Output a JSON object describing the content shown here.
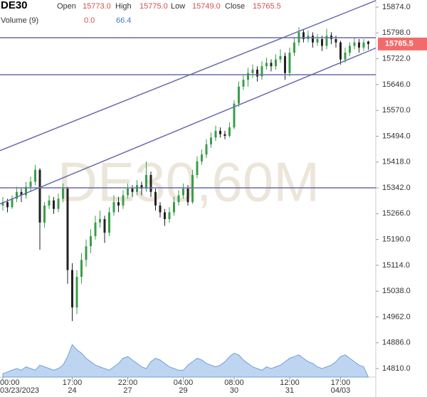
{
  "chart_data": {
    "type": "candlestick",
    "symbol": "DE30",
    "watermark": "DE30,60M",
    "legend": [
      {
        "name": "Open",
        "value": {
          "value": 15773,
          "label": "15773.0"
        }
      },
      {
        "name": "High",
        "value": {
          "value": 15775,
          "label": "15775.0"
        }
      },
      {
        "name": "Low",
        "value": {
          "value": 15749,
          "label": "15749.0"
        }
      },
      {
        "name": "Close",
        "value": {
          "value": 15765.5,
          "label": "15765.5"
        }
      }
    ],
    "volume_legend": {
      "name": "Volume (9)",
      "values": [
        {
          "value": 0,
          "label": "0.0"
        },
        {
          "value": 66.4,
          "label": "66.4"
        }
      ]
    },
    "up_color": "#3a9e48",
    "down_color": "#222222",
    "line_color": "#6a6aae",
    "price_label_color": "#f26b6b",
    "volume_color": "#aecbef",
    "ylim": [
      14785,
      15895
    ],
    "yticks": [
      {
        "value": 15874,
        "label": "15874.0"
      },
      {
        "value": 15798,
        "label": "15798.0"
      },
      {
        "value": 15722,
        "label": "15722.0"
      },
      {
        "value": 15646,
        "label": "15646.0"
      },
      {
        "value": 15570,
        "label": "15570.0"
      },
      {
        "value": 15494,
        "label": "15494.0"
      },
      {
        "value": 15418,
        "label": "15418.0"
      },
      {
        "value": 15342,
        "label": "15342.0"
      },
      {
        "value": 15266,
        "label": "15266.0"
      },
      {
        "value": 15190,
        "label": "15190.0"
      },
      {
        "value": 15114,
        "label": "15114.0"
      },
      {
        "value": 15038,
        "label": "15038.0"
      },
      {
        "value": 14962,
        "label": "14962.0"
      },
      {
        "value": 14886,
        "label": "14886.0"
      },
      {
        "value": 14810,
        "label": "14810.0"
      }
    ],
    "xticks": [
      {
        "value": 0,
        "label": "00:00",
        "date": "03/23/2023"
      },
      {
        "value": 15,
        "label": "17:00",
        "date": "24"
      },
      {
        "value": 27,
        "label": "22:00",
        "date": "27"
      },
      {
        "value": 39,
        "label": "04:00",
        "date": "29"
      },
      {
        "value": 50,
        "label": "08:00",
        "date": "30"
      },
      {
        "value": 62,
        "label": "12:00",
        "date": "31"
      },
      {
        "value": 73,
        "label": "17:00",
        "date": "04/03"
      }
    ],
    "hlines": [
      15784,
      15675,
      15342
    ],
    "trend_lines": [
      [
        [
          0,
          15455
        ],
        [
          80,
          15890
        ]
      ],
      [
        [
          0,
          15298
        ],
        [
          80,
          15750
        ]
      ]
    ],
    "ohlc": [
      [
        15290,
        15315,
        15275,
        15300
      ],
      [
        15300,
        15310,
        15270,
        15285
      ],
      [
        15285,
        15320,
        15280,
        15310
      ],
      [
        15310,
        15345,
        15300,
        15330
      ],
      [
        15330,
        15340,
        15300,
        15320
      ],
      [
        15320,
        15360,
        15310,
        15345
      ],
      [
        15345,
        15375,
        15330,
        15360
      ],
      [
        15360,
        15410,
        15350,
        15395
      ],
      [
        15395,
        15400,
        15160,
        15240
      ],
      [
        15240,
        15300,
        15225,
        15290
      ],
      [
        15290,
        15320,
        15280,
        15305
      ],
      [
        15305,
        15315,
        15265,
        15280
      ],
      [
        15280,
        15325,
        15270,
        15310
      ],
      [
        15310,
        15355,
        15300,
        15340
      ],
      [
        15340,
        15345,
        15060,
        15100
      ],
      [
        15100,
        15120,
        14950,
        14990
      ],
      [
        14990,
        15100,
        14970,
        15080
      ],
      [
        15080,
        15150,
        15060,
        15130
      ],
      [
        15130,
        15190,
        15110,
        15170
      ],
      [
        15170,
        15220,
        15150,
        15200
      ],
      [
        15200,
        15260,
        15190,
        15240
      ],
      [
        15240,
        15275,
        15225,
        15250
      ],
      [
        15250,
        15260,
        15180,
        15210
      ],
      [
        15210,
        15285,
        15200,
        15270
      ],
      [
        15270,
        15320,
        15260,
        15300
      ],
      [
        15300,
        15315,
        15270,
        15290
      ],
      [
        15290,
        15335,
        15280,
        15320
      ],
      [
        15320,
        15355,
        15310,
        15340
      ],
      [
        15340,
        15350,
        15315,
        15330
      ],
      [
        15330,
        15365,
        15320,
        15350
      ],
      [
        15350,
        15360,
        15320,
        15340
      ],
      [
        15340,
        15420,
        15330,
        15380
      ],
      [
        15380,
        15390,
        15315,
        15330
      ],
      [
        15330,
        15340,
        15275,
        15290
      ],
      [
        15290,
        15300,
        15255,
        15270
      ],
      [
        15270,
        15280,
        15230,
        15250
      ],
      [
        15250,
        15285,
        15240,
        15270
      ],
      [
        15270,
        15315,
        15260,
        15300
      ],
      [
        15300,
        15335,
        15290,
        15320
      ],
      [
        15320,
        15355,
        15310,
        15340
      ],
      [
        15340,
        15350,
        15290,
        15300
      ],
      [
        15300,
        15395,
        15295,
        15380
      ],
      [
        15380,
        15435,
        15370,
        15420
      ],
      [
        15420,
        15455,
        15410,
        15440
      ],
      [
        15440,
        15485,
        15430,
        15470
      ],
      [
        15470,
        15505,
        15460,
        15490
      ],
      [
        15490,
        15525,
        15480,
        15510
      ],
      [
        15510,
        15520,
        15490,
        15500
      ],
      [
        15500,
        15510,
        15485,
        15495
      ],
      [
        15495,
        15535,
        15490,
        15520
      ],
      [
        15520,
        15600,
        15515,
        15590
      ],
      [
        15590,
        15655,
        15580,
        15640
      ],
      [
        15640,
        15675,
        15630,
        15660
      ],
      [
        15660,
        15695,
        15640,
        15680
      ],
      [
        15680,
        15705,
        15665,
        15690
      ],
      [
        15690,
        15700,
        15655,
        15670
      ],
      [
        15670,
        15715,
        15660,
        15700
      ],
      [
        15700,
        15725,
        15690,
        15710
      ],
      [
        15710,
        15720,
        15685,
        15700
      ],
      [
        15700,
        15735,
        15690,
        15720
      ],
      [
        15720,
        15750,
        15710,
        15730
      ],
      [
        15730,
        15740,
        15660,
        15680
      ],
      [
        15680,
        15755,
        15670,
        15740
      ],
      [
        15740,
        15785,
        15730,
        15770
      ],
      [
        15770,
        15815,
        15760,
        15800
      ],
      [
        15800,
        15810,
        15770,
        15780
      ],
      [
        15780,
        15805,
        15770,
        15790
      ],
      [
        15790,
        15800,
        15755,
        15770
      ],
      [
        15770,
        15795,
        15760,
        15780
      ],
      [
        15780,
        15790,
        15745,
        15760
      ],
      [
        15760,
        15810,
        15750,
        15790
      ],
      [
        15790,
        15800,
        15765,
        15780
      ],
      [
        15780,
        15790,
        15755,
        15770
      ],
      [
        15770,
        15775,
        15705,
        15720
      ],
      [
        15720,
        15755,
        15710,
        15740
      ],
      [
        15740,
        15770,
        15730,
        15760
      ],
      [
        15760,
        15785,
        15750,
        15770
      ],
      [
        15770,
        15780,
        15740,
        15755
      ],
      [
        15755,
        15780,
        15745,
        15770
      ],
      [
        15773,
        15775,
        15749,
        15765.5
      ]
    ],
    "volume": [
      10,
      15,
      20,
      25,
      20,
      30,
      25,
      20,
      35,
      30,
      25,
      20,
      25,
      35,
      60,
      95,
      80,
      70,
      55,
      45,
      35,
      30,
      25,
      20,
      30,
      40,
      55,
      60,
      50,
      40,
      30,
      25,
      45,
      55,
      50,
      40,
      30,
      25,
      20,
      20,
      35,
      45,
      55,
      50,
      40,
      35,
      30,
      35,
      45,
      60,
      70,
      65,
      50,
      40,
      30,
      25,
      20,
      30,
      25,
      30,
      35,
      45,
      55,
      60,
      65,
      55,
      45,
      40,
      30,
      25,
      30,
      35,
      45,
      60,
      65,
      55,
      45,
      35,
      30,
      0
    ]
  }
}
